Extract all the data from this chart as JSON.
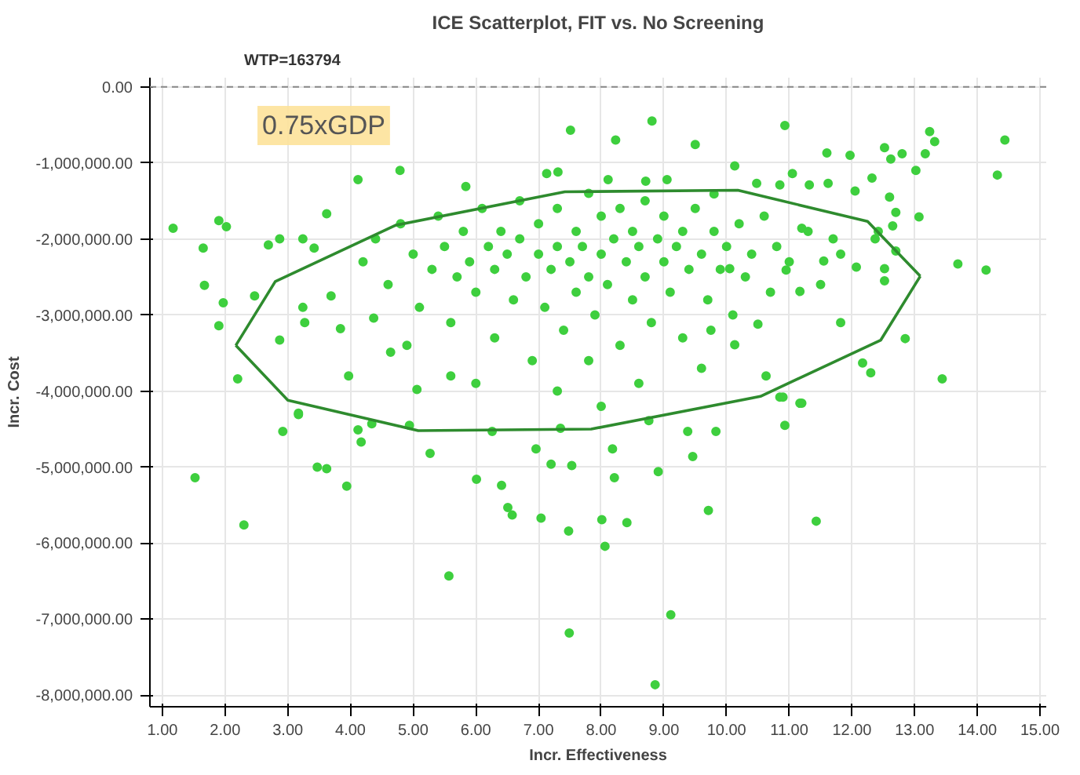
{
  "chart_data": {
    "type": "scatter",
    "title": "ICE Scatterplot, FIT vs. No Screening",
    "xlabel": "Incr. Effectiveness",
    "ylabel": "Incr. Cost",
    "annotations": [
      "WTP=163794",
      "0.75xGDP"
    ],
    "ref_lines": [
      {
        "axis": "y",
        "value": 0,
        "color": "#888888",
        "line_style": "dashed"
      }
    ],
    "xlim": [
      0.8,
      15.1
    ],
    "ylim": [
      -8150000,
      120000
    ],
    "xticks": [
      {
        "value": 1,
        "label": "1.00"
      },
      {
        "value": 2,
        "label": "2.00"
      },
      {
        "value": 3,
        "label": "3.00"
      },
      {
        "value": 4,
        "label": "4.00"
      },
      {
        "value": 5,
        "label": "5.00"
      },
      {
        "value": 6,
        "label": "6.00"
      },
      {
        "value": 7,
        "label": "7.00"
      },
      {
        "value": 8,
        "label": "8.00"
      },
      {
        "value": 9,
        "label": "9.00"
      },
      {
        "value": 10,
        "label": "10.00"
      },
      {
        "value": 11,
        "label": "11.00"
      },
      {
        "value": 12,
        "label": "12.00"
      },
      {
        "value": 13,
        "label": "13.00"
      },
      {
        "value": 14,
        "label": "14.00"
      },
      {
        "value": 15,
        "label": "15.00"
      }
    ],
    "yticks": [
      {
        "value": 0,
        "label": "0.00"
      },
      {
        "value": -1000000,
        "label": "-1,000,000.00"
      },
      {
        "value": -2000000,
        "label": "-2,000,000.00"
      },
      {
        "value": -3000000,
        "label": "-3,000,000.00"
      },
      {
        "value": -4000000,
        "label": "-4,000,000.00"
      },
      {
        "value": -5000000,
        "label": "-5,000,000.00"
      },
      {
        "value": -6000000,
        "label": "-6,000,000.00"
      },
      {
        "value": -7000000,
        "label": "-7,000,000.00"
      },
      {
        "value": -8000000,
        "label": "-8,000,000.00"
      }
    ],
    "grid": true,
    "marker": "circle",
    "series": [
      {
        "color": "#3ecf3e",
        "x": [
          1.52,
          2.3,
          2.92,
          3.17,
          3.47,
          3.62,
          3.94,
          4.12,
          4.17,
          4.34,
          4.94,
          5.27,
          5.57,
          6.01,
          6.26,
          6.41,
          6.51,
          6.58,
          6.96,
          7.04,
          7.2,
          7.48,
          7.49,
          7.53,
          7.35,
          8.01,
          8.06,
          8.18,
          8.21,
          8.41,
          8.76,
          8.86,
          8.91,
          9.11,
          9.38,
          9.46,
          9.71,
          9.83,
          10.93,
          11.2,
          11.43,
          10.85,
          1.17,
          1.65,
          1.9,
          2.02,
          1.67,
          1.97,
          1.9,
          2.2,
          3.17,
          2.69,
          2.47,
          2.87,
          3.24,
          3.42,
          3.24,
          2.87,
          3.27,
          4.12,
          4.79,
          3.62,
          3.97,
          3.84,
          3.69,
          4.37,
          4.64,
          5.06,
          7.51,
          5.84,
          7.13,
          7.31,
          8.23,
          8.81,
          9.5,
          10.93,
          11.6,
          11.97,
          12.52,
          12.62,
          12.8,
          13.17,
          13.24,
          13.32,
          14.44,
          14.32,
          13.02,
          10.13,
          12.32,
          12.05,
          12.6,
          12.7,
          13.07,
          12.65,
          12.42,
          12.37,
          12.7,
          13.69,
          14.14,
          12.52,
          12.07,
          12.52,
          12.85,
          13.44,
          12.3,
          12.17,
          11.82,
          11.82,
          11.55,
          11.62,
          11.32,
          11.05,
          10.48,
          10.85,
          11.2,
          11.17,
          10.95,
          10.5,
          10.63,
          10.9,
          11.17,
          10.13,
          9.75,
          10.05,
          9.8,
          9.05,
          8.71,
          8.11,
          4.2,
          4.4,
          4.6,
          4.8,
          5.0,
          5.1,
          5.3,
          5.4,
          5.5,
          5.6,
          5.7,
          5.8,
          5.9,
          6.0,
          6.1,
          6.2,
          6.3,
          6.3,
          6.4,
          6.5,
          6.6,
          6.7,
          6.7,
          6.8,
          6.9,
          7.0,
          7.0,
          7.1,
          7.2,
          7.3,
          7.3,
          7.4,
          7.5,
          7.6,
          7.6,
          7.7,
          7.8,
          7.8,
          7.9,
          8.0,
          8.0,
          8.1,
          8.2,
          8.3,
          8.3,
          8.4,
          8.5,
          8.5,
          8.6,
          8.7,
          8.7,
          8.8,
          8.9,
          9.0,
          9.0,
          9.1,
          9.2,
          9.3,
          9.3,
          9.4,
          9.5,
          9.6,
          9.7,
          9.8,
          9.9,
          10.0,
          10.1,
          10.2,
          10.3,
          10.4,
          10.6,
          10.7,
          10.8,
          11.0,
          11.3,
          11.5,
          11.7,
          6.0,
          7.3,
          8.6,
          9.6,
          4.9,
          5.6,
          8.0,
          7.8
        ],
        "values": [
          -5140000,
          -5760000,
          -4530000,
          -4310000,
          -5000000,
          -5020000,
          -5250000,
          -4510000,
          -4670000,
          -4430000,
          -4450000,
          -4820000,
          -6430000,
          -5160000,
          -4530000,
          -5240000,
          -5530000,
          -5630000,
          -4760000,
          -5670000,
          -4960000,
          -5840000,
          -7180000,
          -4980000,
          -4490000,
          -5690000,
          -6040000,
          -4760000,
          -5140000,
          -5730000,
          -4390000,
          -7860000,
          -5060000,
          -6940000,
          -4530000,
          -4860000,
          -5570000,
          -4530000,
          -4450000,
          -4160000,
          -5710000,
          -4080000,
          -1860000,
          -2120000,
          -1760000,
          -1840000,
          -2610000,
          -2840000,
          -3140000,
          -3840000,
          -4290000,
          -2080000,
          -2750000,
          -2000000,
          -2000000,
          -2120000,
          -2900000,
          -3330000,
          -3100000,
          -1220000,
          -1100000,
          -1670000,
          -3800000,
          -3180000,
          -2750000,
          -3040000,
          -3490000,
          -3980000,
          -570000,
          -1310000,
          -1140000,
          -1120000,
          -700000,
          -450000,
          -760000,
          -510000,
          -870000,
          -900000,
          -800000,
          -950000,
          -880000,
          -880000,
          -590000,
          -720000,
          -700000,
          -1160000,
          -1100000,
          -1040000,
          -1200000,
          -1370000,
          -1450000,
          -1650000,
          -1710000,
          -1830000,
          -1900000,
          -2000000,
          -2160000,
          -2330000,
          -2410000,
          -2390000,
          -2370000,
          -2550000,
          -3310000,
          -3840000,
          -3760000,
          -3630000,
          -3100000,
          -2200000,
          -2290000,
          -1270000,
          -1290000,
          -1140000,
          -1270000,
          -1290000,
          -1860000,
          -2690000,
          -2410000,
          -3120000,
          -3800000,
          -4080000,
          -4160000,
          -3390000,
          -3200000,
          -2390000,
          -1410000,
          -1220000,
          -1240000,
          -1220000,
          -2300000,
          -2000000,
          -2600000,
          -1800000,
          -2200000,
          -2900000,
          -2400000,
          -1700000,
          -2100000,
          -3100000,
          -2500000,
          -1900000,
          -2300000,
          -2700000,
          -1600000,
          -2100000,
          -3300000,
          -2400000,
          -1900000,
          -2200000,
          -2800000,
          -1500000,
          -2000000,
          -2500000,
          -3600000,
          -2200000,
          -1800000,
          -2900000,
          -2400000,
          -1600000,
          -2100000,
          -3200000,
          -2300000,
          -1900000,
          -2700000,
          -2100000,
          -1400000,
          -2500000,
          -3000000,
          -2200000,
          -1700000,
          -2600000,
          -2000000,
          -3400000,
          -1600000,
          -2300000,
          -2800000,
          -1900000,
          -2100000,
          -1500000,
          -2500000,
          -3100000,
          -2000000,
          -2300000,
          -1700000,
          -2700000,
          -2100000,
          -1900000,
          -3300000,
          -2400000,
          -1600000,
          -2200000,
          -2800000,
          -1900000,
          -2400000,
          -2100000,
          -3000000,
          -1800000,
          -2500000,
          -2200000,
          -1700000,
          -2700000,
          -2100000,
          -2300000,
          -1900000,
          -2600000,
          -2000000,
          -3900000,
          -4000000,
          -3900000,
          -3700000,
          -3400000,
          -3800000,
          -4200000,
          -3600000
        ]
      },
      {
        "type": "line",
        "color": "#2e8b2e",
        "marker": "none",
        "x": [
          2.17,
          2.8,
          4.72,
          7.42,
          10.18,
          12.25,
          13.09
        ],
        "values": [
          -3400000,
          -2560000,
          -1820000,
          -1380000,
          -1360000,
          -1770000,
          -2490000
        ]
      },
      {
        "type": "line",
        "color": "#2e8b2e",
        "marker": "none",
        "x": [
          2.17,
          3.0,
          5.08,
          7.84,
          10.54,
          12.46,
          13.09
        ],
        "values": [
          -3400000,
          -4120000,
          -4520000,
          -4500000,
          -4070000,
          -3330000,
          -2490000
        ]
      }
    ]
  }
}
